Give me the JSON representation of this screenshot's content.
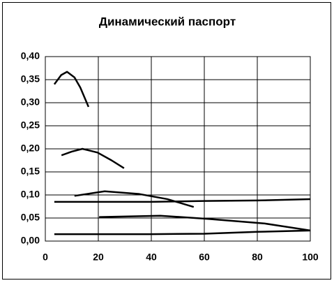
{
  "chart_data": {
    "type": "line",
    "title": "Динамический паспорт",
    "xlim": [
      0,
      100
    ],
    "xticks": [
      0,
      20,
      40,
      60,
      80,
      100
    ],
    "ylim": [
      0,
      0.4
    ],
    "yticks": [
      {
        "value": 0,
        "label": "0,00"
      },
      {
        "value": 0.05,
        "label": "0,05"
      },
      {
        "value": 0.1,
        "label": "0,10"
      },
      {
        "value": 0.15,
        "label": "0,15"
      },
      {
        "value": 0.2,
        "label": "0,20"
      },
      {
        "value": 0.25,
        "label": "0,25"
      },
      {
        "value": 0.3,
        "label": "0,30"
      },
      {
        "value": 0.35,
        "label": "0,35"
      },
      {
        "value": 0.4,
        "label": "0,40"
      }
    ],
    "grid": true,
    "series": [
      {
        "color": "#000000",
        "x": [
          3.4,
          6,
          8.2,
          11,
          13.2,
          16.3
        ],
        "values": [
          0.34,
          0.36,
          0.367,
          0.355,
          0.333,
          0.291
        ]
      },
      {
        "color": "#000000",
        "x": [
          6.1,
          10,
          14,
          19.7,
          25,
          29.7
        ],
        "values": [
          0.186,
          0.194,
          0.2,
          0.192,
          0.175,
          0.158
        ]
      },
      {
        "color": "#000000",
        "x": [
          11,
          22.4,
          35.5,
          46,
          56
        ],
        "values": [
          0.098,
          0.108,
          0.102,
          0.091,
          0.074
        ]
      },
      {
        "color": "#000000",
        "x": [
          3.4,
          40,
          60,
          80,
          100
        ],
        "values": [
          0.085,
          0.085,
          0.087,
          0.088,
          0.091
        ]
      },
      {
        "color": "#000000",
        "x": [
          20.3,
          43.4,
          61.8,
          82.9,
          100
        ],
        "values": [
          0.052,
          0.055,
          0.048,
          0.038,
          0.023
        ]
      },
      {
        "color": "#000000",
        "x": [
          3.4,
          40,
          60,
          80,
          100
        ],
        "values": [
          0.015,
          0.015,
          0.016,
          0.02,
          0.023
        ]
      }
    ]
  }
}
